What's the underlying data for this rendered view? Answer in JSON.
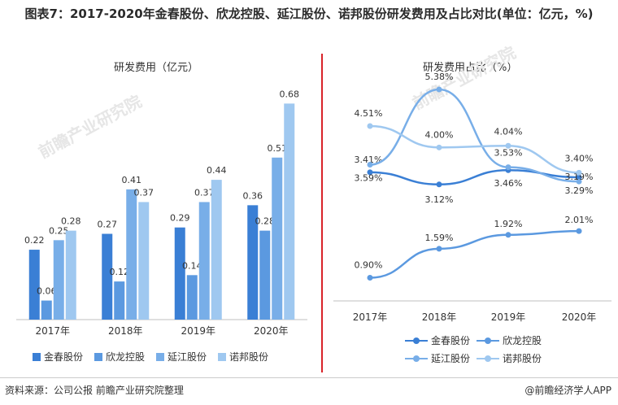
{
  "title": "图表7：2017-2020年金春股份、欣龙控股、延江股份、诺邦股份研发费用及占比对比(单位：亿元，%)",
  "watermark": "前瞻产业研究院",
  "footer": {
    "source": "资料来源：公司公报 前瞻产业研究院整理",
    "brand": "@前瞻经济学人APP"
  },
  "colors": {
    "s1": "#3a7fd5",
    "s2": "#5b99e0",
    "s3": "#78aee8",
    "s4": "#9fc8f0",
    "divider": "#d9232a"
  },
  "chart_data": [
    {
      "type": "bar",
      "title": "研发费用（亿元）",
      "categories": [
        "2017年",
        "2018年",
        "2019年",
        "2020年"
      ],
      "ylim": [
        0,
        0.75
      ],
      "series": [
        {
          "name": "金春股份",
          "values": [
            0.22,
            0.27,
            0.29,
            0.36
          ],
          "labels": [
            "0.22",
            "0.27",
            "0.29",
            "0.36"
          ]
        },
        {
          "name": "欣龙控股",
          "values": [
            0.06,
            0.12,
            0.14,
            0.28
          ],
          "labels": [
            "0.06",
            "0.12",
            "0.14",
            "0.28"
          ]
        },
        {
          "name": "延江股份",
          "values": [
            0.25,
            0.41,
            0.37,
            0.51
          ],
          "labels": [
            "0.25",
            "0.41",
            "0.37",
            "0.51"
          ]
        },
        {
          "name": "诺邦股份",
          "values": [
            0.28,
            0.37,
            0.44,
            0.68
          ],
          "labels": [
            "0.28",
            "0.37",
            "0.44",
            "0.68"
          ]
        }
      ]
    },
    {
      "type": "line",
      "title": "研发费用占比（%）",
      "categories": [
        "2017年",
        "2018年",
        "2019年",
        "2020年"
      ],
      "ylim": [
        0,
        6
      ],
      "series": [
        {
          "name": "金春股份",
          "values": [
            3.41,
            3.12,
            3.46,
            3.29
          ],
          "labels": [
            "3.41%",
            "3.12%",
            "3.46%",
            "3.29%"
          ]
        },
        {
          "name": "欣龙控股",
          "values": [
            0.9,
            1.59,
            1.92,
            2.01
          ],
          "labels": [
            "0.90%",
            "1.59%",
            "1.92%",
            "2.01%"
          ]
        },
        {
          "name": "延江股份",
          "values": [
            3.59,
            5.38,
            3.53,
            3.19
          ],
          "labels": [
            "3.59%",
            "5.38%",
            "3.53%",
            "3.19%"
          ]
        },
        {
          "name": "诺邦股份",
          "values": [
            4.51,
            4.0,
            4.04,
            3.4
          ],
          "labels": [
            "4.51%",
            "4.00%",
            "4.04%",
            "3.40%"
          ]
        }
      ]
    }
  ]
}
